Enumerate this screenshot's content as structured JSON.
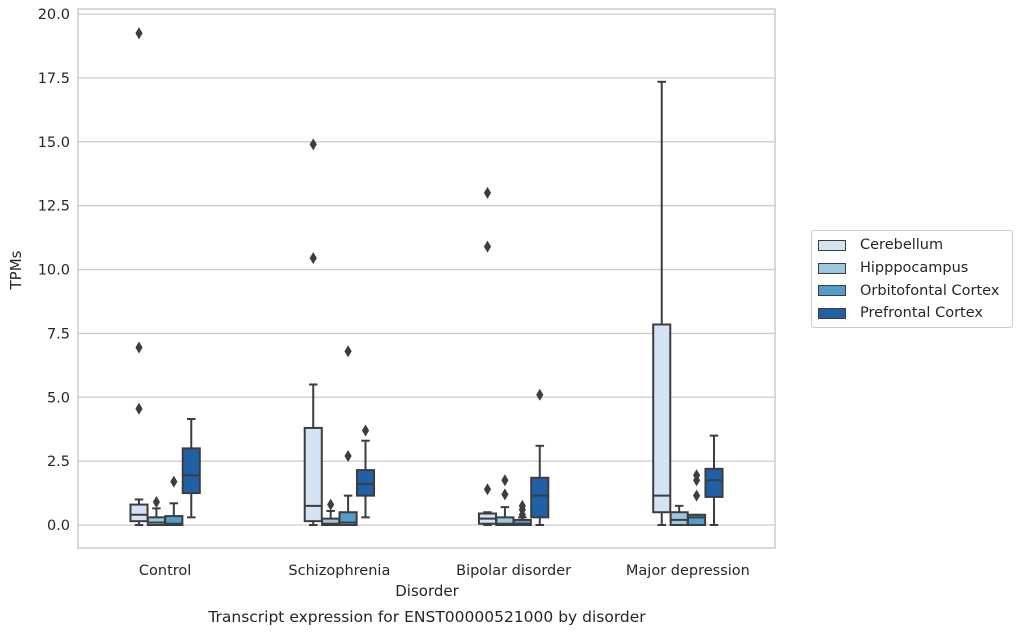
{
  "chart_data": {
    "type": "box",
    "title": "Transcript expression for ENST00000521000 by disorder",
    "xlabel": "Disorder",
    "ylabel": "TPMs",
    "ylim": [
      -0.9,
      20.2
    ],
    "yticks": [
      "0.0",
      "2.5",
      "5.0",
      "7.5",
      "10.0",
      "12.5",
      "15.0",
      "17.5",
      "20.0"
    ],
    "grid": "horizontal",
    "legend_position": "right",
    "categories": [
      "Control",
      "Schizophrenia",
      "Bipolar disorder",
      "Major depression"
    ],
    "series": [
      {
        "name": "Cerebellum",
        "color": "#d3e3f3",
        "boxes": [
          {
            "whisker_low": 0.0,
            "q1": 0.15,
            "median": 0.4,
            "q3": 0.8,
            "whisker_high": 1.0,
            "outliers": [
              4.55,
              6.95,
              19.25
            ]
          },
          {
            "whisker_low": 0.0,
            "q1": 0.15,
            "median": 0.75,
            "q3": 3.8,
            "whisker_high": 5.5,
            "outliers": [
              10.45,
              14.9
            ]
          },
          {
            "whisker_low": 0.0,
            "q1": 0.05,
            "median": 0.25,
            "q3": 0.45,
            "whisker_high": 0.5,
            "outliers": [
              1.4,
              10.9,
              13.0
            ]
          },
          {
            "whisker_low": 0.0,
            "q1": 0.5,
            "median": 1.15,
            "q3": 7.85,
            "whisker_high": 17.35,
            "outliers": []
          }
        ]
      },
      {
        "name": "Hipppocampus",
        "color": "#9ac8e0",
        "boxes": [
          {
            "whisker_low": 0.0,
            "q1": 0.0,
            "median": 0.1,
            "q3": 0.3,
            "whisker_high": 0.65,
            "outliers": [
              0.9
            ]
          },
          {
            "whisker_low": 0.0,
            "q1": 0.0,
            "median": 0.05,
            "q3": 0.25,
            "whisker_high": 0.55,
            "outliers": [
              0.8
            ]
          },
          {
            "whisker_low": 0.0,
            "q1": 0.0,
            "median": 0.05,
            "q3": 0.3,
            "whisker_high": 0.7,
            "outliers": [
              1.2,
              1.75
            ]
          },
          {
            "whisker_low": 0.0,
            "q1": 0.0,
            "median": 0.2,
            "q3": 0.5,
            "whisker_high": 0.75,
            "outliers": []
          }
        ]
      },
      {
        "name": "Orbitofontal Cortex",
        "color": "#529dcc",
        "boxes": [
          {
            "whisker_low": 0.0,
            "q1": 0.0,
            "median": 0.05,
            "q3": 0.35,
            "whisker_high": 0.85,
            "outliers": [
              1.7
            ]
          },
          {
            "whisker_low": 0.0,
            "q1": 0.0,
            "median": 0.1,
            "q3": 0.5,
            "whisker_high": 1.15,
            "outliers": [
              2.7,
              6.8
            ]
          },
          {
            "whisker_low": 0.0,
            "q1": 0.0,
            "median": 0.05,
            "q3": 0.2,
            "whisker_high": 0.3,
            "outliers": [
              0.4,
              0.6,
              0.75
            ]
          },
          {
            "whisker_low": 0.0,
            "q1": 0.0,
            "median": 0.3,
            "q3": 0.4,
            "whisker_high": 0.4,
            "outliers": [
              1.15,
              1.75,
              1.95
            ]
          }
        ]
      },
      {
        "name": "Prefrontal Cortex",
        "color": "#2060a7",
        "boxes": [
          {
            "whisker_low": 0.3,
            "q1": 1.25,
            "median": 1.95,
            "q3": 3.0,
            "whisker_high": 4.15,
            "outliers": []
          },
          {
            "whisker_low": 0.3,
            "q1": 1.15,
            "median": 1.6,
            "q3": 2.15,
            "whisker_high": 3.3,
            "outliers": [
              3.7
            ]
          },
          {
            "whisker_low": 0.0,
            "q1": 0.3,
            "median": 1.15,
            "q3": 1.85,
            "whisker_high": 3.1,
            "outliers": [
              5.1
            ]
          },
          {
            "whisker_low": 0.0,
            "q1": 1.1,
            "median": 1.75,
            "q3": 2.2,
            "whisker_high": 3.5,
            "outliers": []
          }
        ]
      }
    ]
  }
}
